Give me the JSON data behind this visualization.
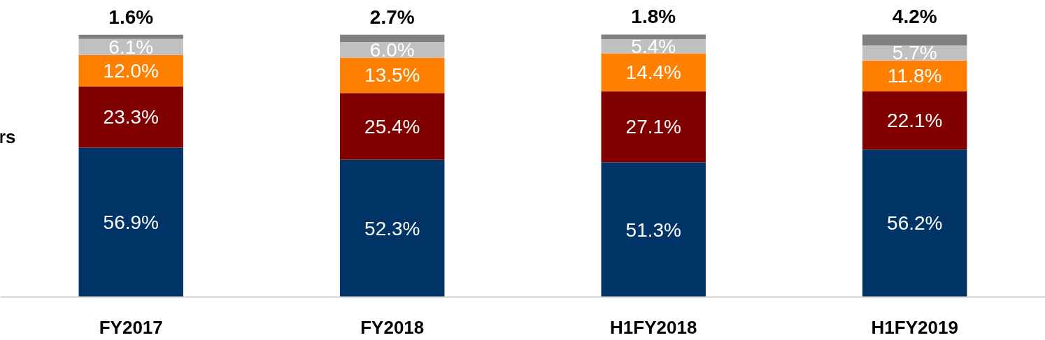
{
  "chart_data": {
    "type": "bar",
    "stacked": true,
    "categories": [
      "FY2017",
      "FY2018",
      "H1FY2018",
      "H1FY2019"
    ],
    "series": [
      {
        "color": "#003366",
        "values": [
          56.9,
          52.3,
          51.3,
          56.2
        ],
        "value_labels": [
          "56.9%",
          "52.3%",
          "51.3%",
          "56.2%"
        ]
      },
      {
        "color": "#800000",
        "values": [
          23.3,
          25.4,
          27.1,
          22.1
        ],
        "value_labels": [
          "23.3%",
          "25.4%",
          "27.1%",
          "22.1%"
        ]
      },
      {
        "color": "#ff8000",
        "values": [
          12.0,
          13.5,
          14.4,
          11.8
        ],
        "value_labels": [
          "12.0%",
          "13.5%",
          "14.4%",
          "11.8%"
        ]
      },
      {
        "color": "#c0c0c0",
        "values": [
          6.1,
          6.0,
          5.4,
          5.7
        ],
        "value_labels": [
          "6.1%",
          "6.0%",
          "5.4%",
          "5.7%"
        ]
      },
      {
        "color": "#808080",
        "values": [
          1.6,
          2.7,
          1.8,
          4.2
        ],
        "value_labels": [
          "1.6%",
          "2.7%",
          "1.8%",
          "4.2%"
        ]
      }
    ],
    "annotations": [
      "rs"
    ]
  }
}
